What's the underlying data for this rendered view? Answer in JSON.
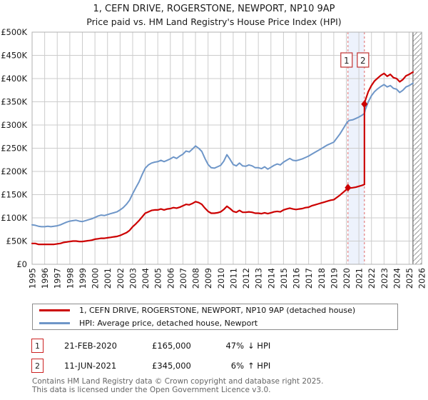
{
  "chart_data": {
    "type": "line",
    "title": "1, CEFN DRIVE, ROGERSTONE, NEWPORT, NP10 9AP",
    "subtitle": "Price paid vs. HM Land Registry's House Price Index (HPI)",
    "unit": "GBP thousands",
    "grid": "on",
    "legend_position": "bottom",
    "x_axis": {
      "years": [
        1995,
        1996,
        1997,
        1998,
        1999,
        2000,
        2001,
        2002,
        2003,
        2004,
        2005,
        2006,
        2007,
        2008,
        2009,
        2010,
        2011,
        2012,
        2013,
        2014,
        2015,
        2016,
        2017,
        2018,
        2019,
        2020,
        2021,
        2022,
        2023,
        2024,
        2025,
        2026
      ]
    },
    "y_axis": {
      "min": 0,
      "max": 500,
      "tick_values": [
        0,
        50,
        100,
        150,
        200,
        250,
        300,
        350,
        400,
        450,
        500
      ],
      "tick_labels": [
        "£0",
        "£50K",
        "£100K",
        "£150K",
        "£200K",
        "£250K",
        "£300K",
        "£350K",
        "£400K",
        "£450K",
        "£500K"
      ]
    },
    "colors": {
      "grid": "#cccccc",
      "axis": "#b0b0b0",
      "band_fill": "#edf2fc",
      "band_border": "#e06666",
      "hatch": "#9a9a9a",
      "sale_box_border": "#c03030",
      "marker": "#cc0000"
    },
    "sale_band": {
      "from": 2020.13,
      "to": 2021.44
    },
    "future_hatch_from": 2025.3,
    "series": [
      {
        "id": "property",
        "name": "1, CEFN DRIVE, ROGERSTONE, NEWPORT, NP10 9AP (detached house)",
        "color": "#cc0000",
        "points": [
          [
            1995,
            45
          ],
          [
            1995.25,
            45
          ],
          [
            1995.5,
            43
          ],
          [
            1995.75,
            43
          ],
          [
            1996,
            43
          ],
          [
            1996.25,
            43
          ],
          [
            1996.5,
            43
          ],
          [
            1996.75,
            43
          ],
          [
            1997,
            44
          ],
          [
            1997.25,
            45
          ],
          [
            1997.5,
            47
          ],
          [
            1997.75,
            48
          ],
          [
            1998,
            49
          ],
          [
            1998.25,
            50
          ],
          [
            1998.5,
            50
          ],
          [
            1998.75,
            49
          ],
          [
            1999,
            49
          ],
          [
            1999.25,
            50
          ],
          [
            1999.5,
            51
          ],
          [
            1999.75,
            52
          ],
          [
            2000,
            54
          ],
          [
            2000.25,
            55
          ],
          [
            2000.5,
            56
          ],
          [
            2000.75,
            56
          ],
          [
            2001,
            57
          ],
          [
            2001.25,
            58
          ],
          [
            2001.5,
            59
          ],
          [
            2001.75,
            60
          ],
          [
            2002,
            62
          ],
          [
            2002.25,
            65
          ],
          [
            2002.5,
            68
          ],
          [
            2002.75,
            73
          ],
          [
            2003,
            81
          ],
          [
            2003.25,
            87
          ],
          [
            2003.5,
            94
          ],
          [
            2003.75,
            102
          ],
          [
            2004,
            110
          ],
          [
            2004.25,
            113
          ],
          [
            2004.5,
            116
          ],
          [
            2004.75,
            117
          ],
          [
            2005,
            117
          ],
          [
            2005.25,
            119
          ],
          [
            2005.5,
            117
          ],
          [
            2005.75,
            119
          ],
          [
            2006,
            120
          ],
          [
            2006.25,
            122
          ],
          [
            2006.5,
            121
          ],
          [
            2006.75,
            123
          ],
          [
            2007,
            126
          ],
          [
            2007.25,
            129
          ],
          [
            2007.5,
            128
          ],
          [
            2007.75,
            131
          ],
          [
            2008,
            135
          ],
          [
            2008.25,
            133
          ],
          [
            2008.5,
            129
          ],
          [
            2008.75,
            121
          ],
          [
            2009,
            114
          ],
          [
            2009.25,
            110
          ],
          [
            2009.5,
            110
          ],
          [
            2009.75,
            111
          ],
          [
            2010,
            113
          ],
          [
            2010.25,
            118
          ],
          [
            2010.5,
            125
          ],
          [
            2010.75,
            120
          ],
          [
            2011,
            114
          ],
          [
            2011.25,
            112
          ],
          [
            2011.5,
            116
          ],
          [
            2011.75,
            112
          ],
          [
            2012,
            112
          ],
          [
            2012.25,
            113
          ],
          [
            2012.5,
            112
          ],
          [
            2012.75,
            110
          ],
          [
            2013,
            110
          ],
          [
            2013.25,
            109
          ],
          [
            2013.5,
            111
          ],
          [
            2013.75,
            109
          ],
          [
            2014,
            111
          ],
          [
            2014.25,
            113
          ],
          [
            2014.5,
            114
          ],
          [
            2014.75,
            113
          ],
          [
            2015,
            117
          ],
          [
            2015.25,
            119
          ],
          [
            2015.5,
            121
          ],
          [
            2015.75,
            119
          ],
          [
            2016,
            118
          ],
          [
            2016.25,
            119
          ],
          [
            2016.5,
            120
          ],
          [
            2016.75,
            122
          ],
          [
            2017,
            123
          ],
          [
            2017.25,
            126
          ],
          [
            2017.5,
            128
          ],
          [
            2017.75,
            130
          ],
          [
            2018,
            132
          ],
          [
            2018.25,
            134
          ],
          [
            2018.5,
            136
          ],
          [
            2018.75,
            138
          ],
          [
            2019,
            139
          ],
          [
            2019.25,
            144
          ],
          [
            2019.5,
            149
          ],
          [
            2019.75,
            155
          ],
          [
            2020,
            161
          ],
          [
            2020.13,
            165
          ],
          [
            2020.25,
            164
          ],
          [
            2020.5,
            165
          ],
          [
            2020.75,
            166
          ],
          [
            2021,
            168
          ],
          [
            2021.25,
            170
          ],
          [
            2021.44,
            172
          ],
          [
            2021.44,
            345
          ],
          [
            2021.5,
            352
          ],
          [
            2021.75,
            372
          ],
          [
            2022,
            385
          ],
          [
            2022.25,
            395
          ],
          [
            2022.5,
            401
          ],
          [
            2022.75,
            407
          ],
          [
            2023,
            411
          ],
          [
            2023.25,
            405
          ],
          [
            2023.5,
            409
          ],
          [
            2023.75,
            402
          ],
          [
            2024,
            400
          ],
          [
            2024.25,
            393
          ],
          [
            2024.5,
            398
          ],
          [
            2024.75,
            406
          ],
          [
            2025,
            409
          ],
          [
            2025.3,
            414
          ]
        ]
      },
      {
        "id": "hpi",
        "name": "HPI: Average price, detached house, Newport",
        "color": "#6e96c8",
        "points": [
          [
            1995,
            85
          ],
          [
            1995.25,
            84
          ],
          [
            1995.5,
            82
          ],
          [
            1995.75,
            81
          ],
          [
            1996,
            81
          ],
          [
            1996.25,
            82
          ],
          [
            1996.5,
            81
          ],
          [
            1996.75,
            82
          ],
          [
            1997,
            83
          ],
          [
            1997.25,
            85
          ],
          [
            1997.5,
            88
          ],
          [
            1997.75,
            91
          ],
          [
            1998,
            93
          ],
          [
            1998.25,
            94
          ],
          [
            1998.5,
            95
          ],
          [
            1998.75,
            93
          ],
          [
            1999,
            92
          ],
          [
            1999.25,
            94
          ],
          [
            1999.5,
            96
          ],
          [
            1999.75,
            98
          ],
          [
            2000,
            101
          ],
          [
            2000.25,
            104
          ],
          [
            2000.5,
            106
          ],
          [
            2000.75,
            105
          ],
          [
            2001,
            107
          ],
          [
            2001.25,
            109
          ],
          [
            2001.5,
            111
          ],
          [
            2001.75,
            113
          ],
          [
            2002,
            117
          ],
          [
            2002.25,
            122
          ],
          [
            2002.5,
            129
          ],
          [
            2002.75,
            138
          ],
          [
            2003,
            152
          ],
          [
            2003.25,
            165
          ],
          [
            2003.5,
            177
          ],
          [
            2003.75,
            193
          ],
          [
            2004,
            207
          ],
          [
            2004.25,
            214
          ],
          [
            2004.5,
            218
          ],
          [
            2004.75,
            220
          ],
          [
            2005,
            221
          ],
          [
            2005.25,
            224
          ],
          [
            2005.5,
            221
          ],
          [
            2005.75,
            224
          ],
          [
            2006,
            227
          ],
          [
            2006.25,
            231
          ],
          [
            2006.5,
            228
          ],
          [
            2006.75,
            233
          ],
          [
            2007,
            237
          ],
          [
            2007.25,
            244
          ],
          [
            2007.5,
            242
          ],
          [
            2007.75,
            248
          ],
          [
            2008,
            255
          ],
          [
            2008.25,
            250
          ],
          [
            2008.5,
            243
          ],
          [
            2008.75,
            228
          ],
          [
            2009,
            215
          ],
          [
            2009.25,
            208
          ],
          [
            2009.5,
            207
          ],
          [
            2009.75,
            210
          ],
          [
            2010,
            213
          ],
          [
            2010.25,
            222
          ],
          [
            2010.5,
            236
          ],
          [
            2010.75,
            226
          ],
          [
            2011,
            215
          ],
          [
            2011.25,
            212
          ],
          [
            2011.5,
            218
          ],
          [
            2011.75,
            212
          ],
          [
            2012,
            211
          ],
          [
            2012.25,
            214
          ],
          [
            2012.5,
            212
          ],
          [
            2012.75,
            208
          ],
          [
            2013,
            208
          ],
          [
            2013.25,
            206
          ],
          [
            2013.5,
            210
          ],
          [
            2013.75,
            205
          ],
          [
            2014,
            209
          ],
          [
            2014.25,
            213
          ],
          [
            2014.5,
            216
          ],
          [
            2014.75,
            214
          ],
          [
            2015,
            220
          ],
          [
            2015.25,
            224
          ],
          [
            2015.5,
            228
          ],
          [
            2015.75,
            224
          ],
          [
            2016,
            223
          ],
          [
            2016.25,
            225
          ],
          [
            2016.5,
            227
          ],
          [
            2016.75,
            230
          ],
          [
            2017,
            233
          ],
          [
            2017.25,
            237
          ],
          [
            2017.5,
            241
          ],
          [
            2017.75,
            245
          ],
          [
            2018,
            249
          ],
          [
            2018.25,
            253
          ],
          [
            2018.5,
            257
          ],
          [
            2018.75,
            260
          ],
          [
            2019,
            263
          ],
          [
            2019.25,
            272
          ],
          [
            2019.5,
            281
          ],
          [
            2019.75,
            292
          ],
          [
            2020,
            303
          ],
          [
            2020.13,
            308
          ],
          [
            2020.25,
            310
          ],
          [
            2020.5,
            311
          ],
          [
            2020.75,
            314
          ],
          [
            2021,
            317
          ],
          [
            2021.25,
            321
          ],
          [
            2021.44,
            325
          ],
          [
            2021.5,
            332
          ],
          [
            2021.75,
            350
          ],
          [
            2022,
            363
          ],
          [
            2022.25,
            372
          ],
          [
            2022.5,
            378
          ],
          [
            2022.75,
            383
          ],
          [
            2023,
            387
          ],
          [
            2023.25,
            382
          ],
          [
            2023.5,
            385
          ],
          [
            2023.75,
            379
          ],
          [
            2024,
            377
          ],
          [
            2024.25,
            370
          ],
          [
            2024.5,
            375
          ],
          [
            2024.75,
            382
          ],
          [
            2025,
            385
          ],
          [
            2025.3,
            390
          ]
        ]
      }
    ],
    "markers": [
      {
        "label": "1",
        "x": 2020.13,
        "y": 165
      },
      {
        "label": "2",
        "x": 2021.44,
        "y": 345
      }
    ]
  },
  "annotations": [
    {
      "num": "1",
      "date": "21-FEB-2020",
      "price": "£165,000",
      "pct": "47%",
      "rel": "↓ HPI"
    },
    {
      "num": "2",
      "date": "11-JUN-2021",
      "price": "£345,000",
      "pct": "6%",
      "rel": "↑ HPI"
    }
  ],
  "footer": {
    "line1": "Contains HM Land Registry data © Crown copyright and database right 2025.",
    "line2": "This data is licensed under the Open Government Licence v3.0."
  }
}
